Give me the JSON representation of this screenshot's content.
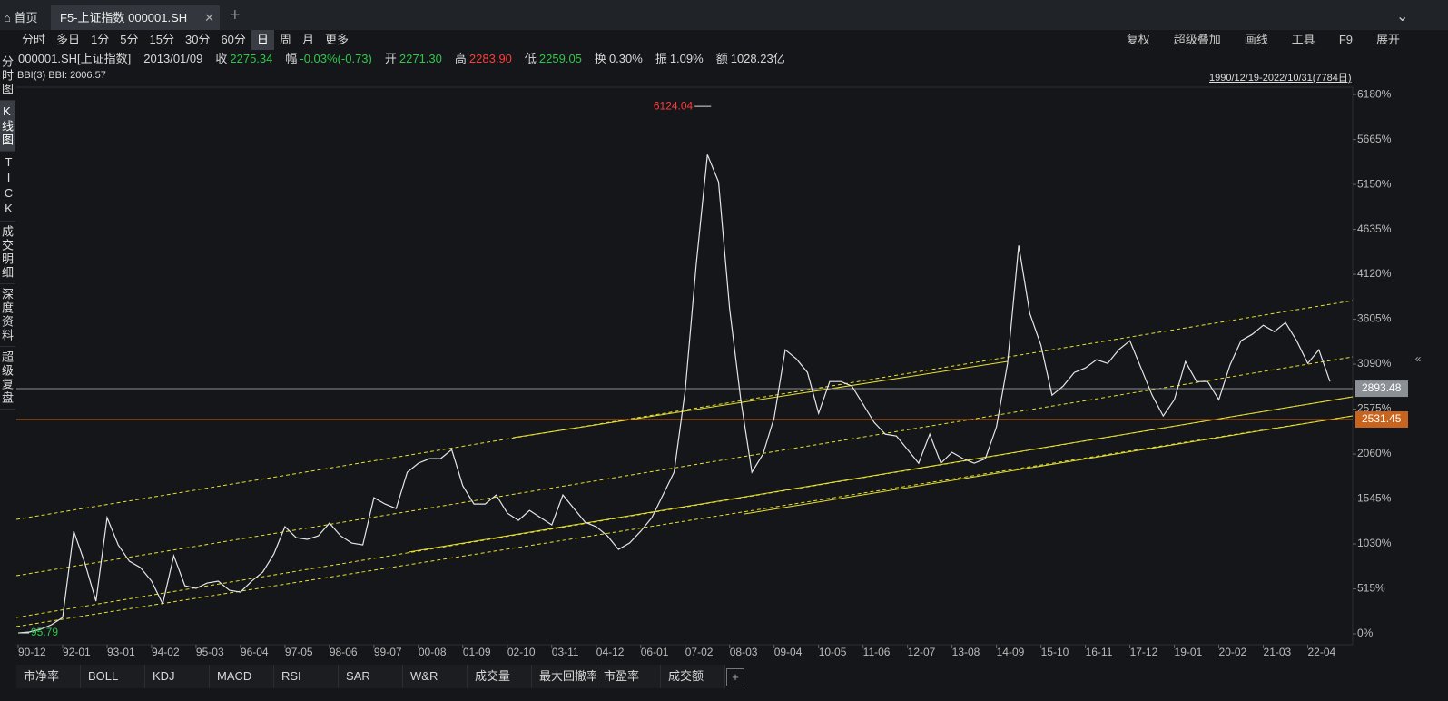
{
  "tabs": {
    "home": "首页",
    "active": "F5-上证指数 000001.SH"
  },
  "periods": [
    "分时",
    "多日",
    "1分",
    "5分",
    "15分",
    "30分",
    "60分",
    "日",
    "周",
    "月",
    "更多"
  ],
  "tools": [
    "复权",
    "超级叠加",
    "画线",
    "工具",
    "F9",
    "展开"
  ],
  "side_tabs": [
    "分时图",
    "K线图",
    "TICK",
    "成交明细",
    "深度资料",
    "超级复盘"
  ],
  "quote": {
    "symbol": "000001.SH[上证指数]",
    "date": "2013/01/09",
    "items": [
      {
        "label": "收",
        "value": "2275.34",
        "color": "#2ec84a"
      },
      {
        "label": "幅",
        "value": "-0.03%(-0.73)",
        "color": "#2ec84a"
      },
      {
        "label": "开",
        "value": "2271.30",
        "color": "#2ec84a"
      },
      {
        "label": "高",
        "value": "2283.90",
        "color": "#ff3b3b"
      },
      {
        "label": "低",
        "value": "2259.05",
        "color": "#2ec84a"
      },
      {
        "label": "换",
        "value": "0.30%",
        "color": "#d8d8d8"
      },
      {
        "label": "振",
        "value": "1.09%",
        "color": "#d8d8d8"
      },
      {
        "label": "额",
        "value": "1028.23亿",
        "color": "#d8d8d8"
      }
    ]
  },
  "indicator": "BBI(3) BBI: 2006.57",
  "range": "1990/12/19-2022/10/31(7784日)",
  "chart_data": {
    "type": "line",
    "categories": [
      "90-12",
      null,
      null,
      null,
      "92-01",
      null,
      null,
      null,
      "93-01",
      null,
      null,
      null,
      "94-02",
      null,
      null,
      null,
      "95-03",
      null,
      null,
      null,
      "96-04",
      null,
      null,
      null,
      "97-05",
      null,
      null,
      null,
      "98-06",
      null,
      null,
      null,
      "99-07",
      null,
      null,
      null,
      "00-08",
      null,
      null,
      null,
      "01-09",
      null,
      null,
      null,
      "02-10",
      null,
      null,
      null,
      "03-11",
      null,
      null,
      null,
      "04-12",
      null,
      null,
      null,
      "06-01",
      null,
      null,
      null,
      "07-02",
      null,
      null,
      null,
      "08-03",
      null,
      null,
      null,
      "09-04",
      null,
      null,
      null,
      "10-05",
      null,
      null,
      null,
      "11-06",
      null,
      null,
      null,
      "12-07",
      null,
      null,
      null,
      "13-08",
      null,
      null,
      null,
      "14-09",
      null,
      null,
      null,
      "15-10",
      null,
      null,
      null,
      "16-11",
      null,
      null,
      null,
      "17-12",
      null,
      null,
      null,
      "19-01",
      null,
      null,
      null,
      "20-02",
      null,
      null,
      null,
      "21-03",
      null,
      null,
      null,
      "22-04",
      null,
      null
    ],
    "values": [
      10,
      21,
      52,
      104,
      187,
      1175,
      811,
      374,
      1331,
      1019,
      832,
      759,
      603,
      343,
      894,
      551,
      520,
      582,
      603,
      499,
      478,
      603,
      707,
      915,
      1227,
      1102,
      1082,
      1123,
      1269,
      1123,
      1040,
      1019,
      1560,
      1487,
      1435,
      1851,
      1955,
      2007,
      2007,
      2111,
      1695,
      1487,
      1487,
      1591,
      1383,
      1300,
      1414,
      1331,
      1248,
      1591,
      1435,
      1279,
      1227,
      1123,
      967,
      1040,
      1175,
      1331,
      1591,
      1851,
      2787,
      4243,
      5491,
      5179,
      3723,
      2683,
      1851,
      2059,
      2475,
      3255,
      3151,
      2995,
      2527,
      2891,
      2891,
      2839,
      2631,
      2423,
      2288,
      2267,
      2111,
      1955,
      2288,
      1955,
      2080,
      2007,
      1955,
      2007,
      2371,
      3099,
      4451,
      3671,
      3307,
      2735,
      2839,
      2995,
      3047,
      3141,
      3099,
      3255,
      3359,
      3047,
      2735,
      2496,
      2683,
      3120,
      2891,
      2891,
      2683,
      3078,
      3359,
      3432,
      3536,
      3463,
      3567,
      3359,
      3099,
      3255,
      2891
    ],
    "color": "#e6e6e6",
    "ylim": [
      -104,
      6254
    ],
    "yticks": [
      {
        "value": 0,
        "label": "0%"
      },
      {
        "value": 515,
        "label": "515%"
      },
      {
        "value": 1030,
        "label": "1030%"
      },
      {
        "value": 1545,
        "label": "1545%"
      },
      {
        "value": 2060,
        "label": "2060%"
      },
      {
        "value": 2575,
        "label": "2575%"
      },
      {
        "value": 3090,
        "label": "3090%"
      },
      {
        "value": 3605,
        "label": "3605%"
      },
      {
        "value": 4120,
        "label": "4120%"
      },
      {
        "value": 4635,
        "label": "4635%"
      },
      {
        "value": 5150,
        "label": "5150%"
      },
      {
        "value": 5665,
        "label": "5665%"
      },
      {
        "value": 6180,
        "label": "6180%"
      }
    ],
    "price_lines": [
      {
        "value": 2809,
        "label": "2893.48",
        "color": "#8a9096"
      },
      {
        "value": 2456,
        "label": "2531.45",
        "color": "#c8641e"
      }
    ],
    "max_label": {
      "value": 6045,
      "label": "6124.04"
    },
    "min_label": {
      "value": 10,
      "label": "95.79"
    }
  },
  "indicator_tabs": [
    "市净率",
    "BOLL",
    "KDJ",
    "MACD",
    "RSI",
    "SAR",
    "W&R",
    "成交量",
    "最大回撤率",
    "市盈率",
    "成交额"
  ]
}
